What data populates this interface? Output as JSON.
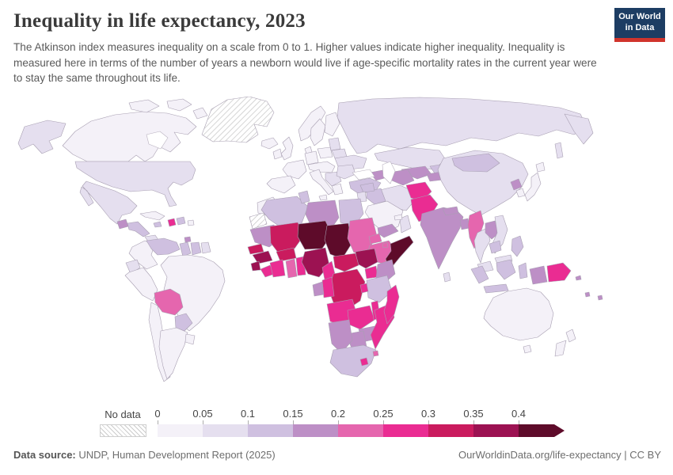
{
  "header": {
    "title": "Inequality in life expectancy, 2023",
    "subtitle": "The Atkinson index measures inequality on a scale from 0 to 1. Higher values indicate higher inequality. Inequality is measured here in terms of the number of years a newborn would live if age-specific mortality rates in the current year were to stay the same throughout its life.",
    "logo": {
      "line1": "Our World",
      "line2": "in Data",
      "bg": "#1d3d63",
      "bar": "#d0342c"
    }
  },
  "legend": {
    "no_data_label": "No data",
    "tick_labels": [
      "0",
      "0.05",
      "0.1",
      "0.15",
      "0.2",
      "0.25",
      "0.3",
      "0.35",
      "0.4"
    ]
  },
  "footer": {
    "source_label": "Data source:",
    "source_value": " UNDP, Human Development Report (2025)",
    "url": "OurWorldinData.org/life-expectancy",
    "license": " | CC BY"
  },
  "chart_data": {
    "type": "choropleth",
    "title": "Inequality in life expectancy, 2023",
    "year": 2023,
    "metric": "Atkinson index of inequality in life expectancy (scale 0 to 1)",
    "map_style": {
      "border": "#a89fb2",
      "ocean": "#ffffff",
      "no_data_hatch": "#c8c8c8"
    },
    "legend_bins": [
      {
        "label": "0–0.05",
        "color": "#f4f1f8"
      },
      {
        "label": "0.05–0.1",
        "color": "#e5dfef"
      },
      {
        "label": "0.1–0.15",
        "color": "#cfc0e0"
      },
      {
        "label": "0.15–0.2",
        "color": "#bd8fc6"
      },
      {
        "label": "0.2–0.25",
        "color": "#e566ae"
      },
      {
        "label": "0.25–0.3",
        "color": "#ea2c92"
      },
      {
        "label": "0.3–0.35",
        "color": "#ca1b5e"
      },
      {
        "label": "0.35–0.4",
        "color": "#9c1252"
      },
      {
        "label": "0.4+",
        "color": "#5e0b2a"
      }
    ],
    "values": {
      "canada": 0,
      "greenland": "no-data",
      "usa": 1,
      "mexico": 1,
      "guatemala": 3,
      "central-america": 2,
      "panama": 1,
      "cuba": 0,
      "jamaica": 2,
      "haiti": 5,
      "dominican-republic": 2,
      "puerto-rico": 0,
      "trinidad-and-tobago": 3,
      "colombia": 0,
      "venezuela": 2,
      "guyana": 2,
      "suriname": 2,
      "french-guiana": 1,
      "ecuador": 1,
      "peru": 0,
      "brazil": 0,
      "bolivia": 4,
      "paraguay": 2,
      "chile": 0,
      "argentina": 0,
      "uruguay": 0,
      "iceland": 0,
      "ireland": 0,
      "united-kingdom": 0,
      "norway": 0,
      "sweden": 0,
      "finland": 0,
      "denmark": 0,
      "baltics": 1,
      "belarus": 1,
      "ukraine": 1,
      "poland": 0,
      "germany": 0,
      "france": 0,
      "iberia": 0,
      "italy": 0,
      "central-europe": 0,
      "balkans": 1,
      "romania-bulgaria": 1,
      "greece": 0,
      "turkey": 2,
      "caucasus": 3,
      "russia": 1,
      "kazakhstan": 1,
      "uzbekistan": 3,
      "turkmenistan": 3,
      "kyrgyzstan": 2,
      "tajikistan": 3,
      "china": 1,
      "mongolia": 2,
      "north-korea": 3,
      "south-korea": 0,
      "japan": 0,
      "iran": 1,
      "iraq": 2,
      "syria": 2,
      "jordan": 1,
      "saudi-arabia": 0,
      "yemen": 3,
      "oman": 1,
      "uae": 0,
      "afghanistan": 5,
      "pakistan": 5,
      "india": 3,
      "nepal": 3,
      "bangladesh": 3,
      "sri-lanka": 1,
      "myanmar": 4,
      "thailand": 1,
      "laos": 3,
      "vietnam": 1,
      "cambodia": 2,
      "malaysia": 1,
      "indonesia": 2,
      "indonesia-papua": 3,
      "philippines": 2,
      "papua-new-guinea": 5,
      "timor-leste": 4,
      "solomon-islands": 3,
      "vanuatu": 3,
      "fiji": 3,
      "australia": 0,
      "new-zealand": 0,
      "morocco": 0,
      "western-sahara": "no-data",
      "algeria": 2,
      "tunisia": 2,
      "libya": 3,
      "egypt": 2,
      "mauritania": 3,
      "mali": 6,
      "niger": 8,
      "chad": 8,
      "sudan": 4,
      "eritrea": 4,
      "djibouti": 4,
      "ethiopia": 4,
      "somalia": 8,
      "south-sudan": 7,
      "senegal": 6,
      "guinea": 7,
      "sierra-leone": 7,
      "liberia": 5,
      "burkina-faso": 6,
      "cote-divoire": 5,
      "ghana": 4,
      "togo-benin": 5,
      "nigeria": 7,
      "cameroon": 5,
      "central-african-republic": 6,
      "drc": 6,
      "congo": 5,
      "gabon": 3,
      "uganda": 5,
      "kenya": 3,
      "tanzania": 2,
      "rwanda-burundi": 5,
      "angola": 5,
      "zambia": 5,
      "malawi": 5,
      "zimbabwe": 3,
      "mozambique": 5,
      "botswana": 3,
      "namibia": 3,
      "south-africa": 2,
      "lesotho": 5,
      "eswatini": 4,
      "madagascar": 5
    }
  }
}
